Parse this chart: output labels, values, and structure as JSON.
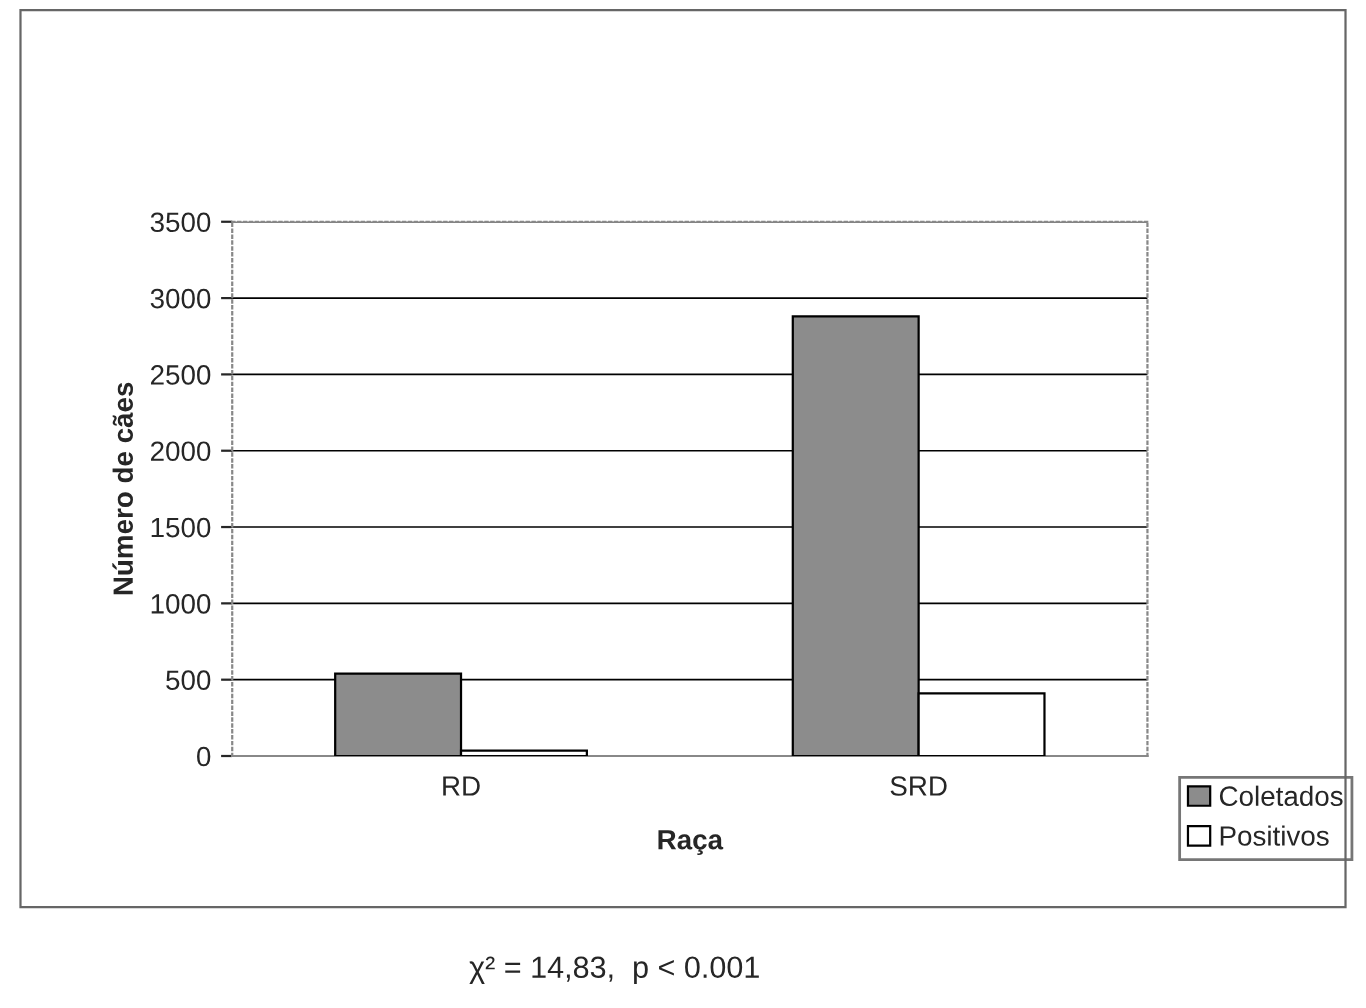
{
  "chart_data": {
    "type": "bar",
    "xlabel": "Raça",
    "ylabel": "Número de cães",
    "categories": [
      "RD",
      "SRD"
    ],
    "series": [
      {
        "name": "Coletados",
        "color": "#8c8c8c",
        "values": [
          540,
          2880
        ]
      },
      {
        "name": "Positivos",
        "color": "#ffffff",
        "values": [
          35,
          410
        ]
      }
    ],
    "ylim": [
      0,
      3500
    ],
    "yticks": [
      0,
      500,
      1000,
      1500,
      2000,
      2500,
      3000,
      3500
    ],
    "grid": "y",
    "legend": "bottom right",
    "annotations": [
      "χ² = 14,83,  p < 0.001"
    ]
  }
}
